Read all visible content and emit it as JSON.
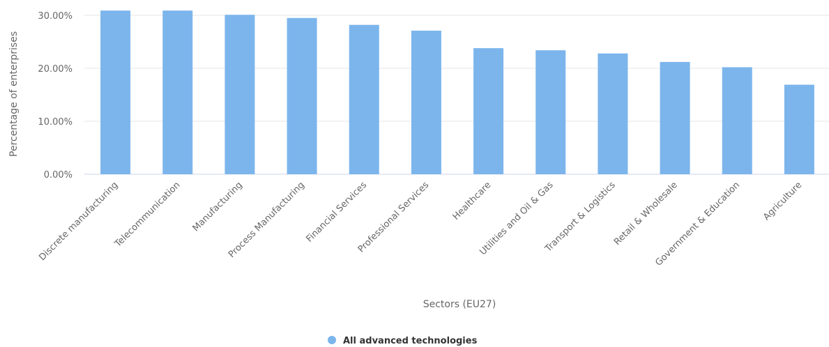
{
  "chart_data": {
    "type": "bar",
    "title": "",
    "xlabel": "Sectors (EU27)",
    "ylabel": "Percentage of enterprises",
    "ylim": [
      0,
      30
    ],
    "yticks": [
      "0.00%",
      "10.00%",
      "20.00%",
      "30.00%"
    ],
    "grid": true,
    "legend": "bottom-center",
    "categories": [
      "Discrete manufacturing",
      "Telecommunication",
      "Manufacturing",
      "Process Manufacturing",
      "Financial Services",
      "Professional Services",
      "Healthcare",
      "Utilities and Oil & Gas",
      "Transport & Logistics",
      "Retail & Wholesale",
      "Government & Education",
      "Agriculture"
    ],
    "series": [
      {
        "name": "All advanced technologies",
        "color": "#7cb5ec",
        "values": [
          30.9,
          30.9,
          30.1,
          29.5,
          28.2,
          27.1,
          23.8,
          23.4,
          22.8,
          21.2,
          20.2,
          16.9
        ]
      }
    ]
  }
}
